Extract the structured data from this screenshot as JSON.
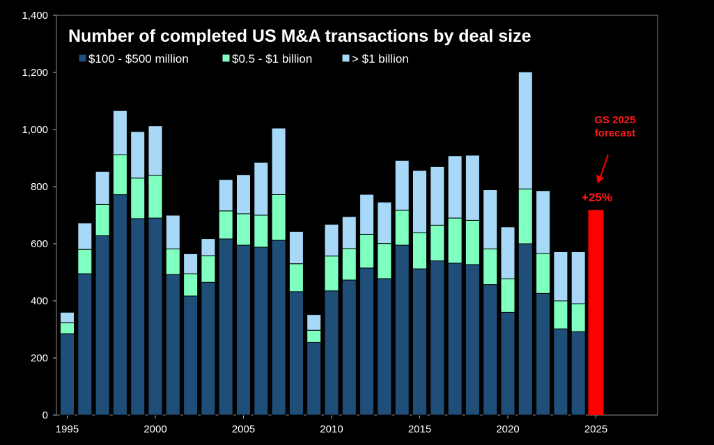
{
  "chart_data": {
    "type": "bar",
    "stacked": true,
    "title": "Number of completed US M&A transactions by deal size",
    "xlabel": "",
    "ylabel": "",
    "ylim": [
      0,
      1400
    ],
    "yticks": [
      0,
      200,
      400,
      600,
      800,
      1000,
      1200,
      1400
    ],
    "ytick_labels": [
      "0",
      "200",
      "400",
      "600",
      "800",
      "1,000",
      "1,200",
      "1,400"
    ],
    "xtick_labels": [
      "1995",
      "2000",
      "2005",
      "2010",
      "2015",
      "2020",
      "2025"
    ],
    "xtick_years": [
      1995,
      2000,
      2005,
      2010,
      2015,
      2020,
      2025
    ],
    "legend_position": "top-left",
    "categories": [
      1995,
      1996,
      1997,
      1998,
      1999,
      2000,
      2001,
      2002,
      2003,
      2004,
      2005,
      2006,
      2007,
      2008,
      2009,
      2010,
      2011,
      2012,
      2013,
      2014,
      2015,
      2016,
      2017,
      2018,
      2019,
      2020,
      2021,
      2022,
      2023,
      2024
    ],
    "series": [
      {
        "name": "$100 - $500 million",
        "color": "#1f4e79",
        "values": [
          285,
          495,
          628,
          772,
          688,
          690,
          492,
          417,
          465,
          617,
          595,
          588,
          612,
          432,
          255,
          435,
          473,
          515,
          478,
          595,
          512,
          540,
          532,
          527,
          457,
          360,
          600,
          426,
          302,
          292
        ]
      },
      {
        "name": "$0.5 - $1 billion",
        "color": "#7fffc0",
        "values": [
          38,
          85,
          110,
          140,
          142,
          150,
          90,
          78,
          93,
          98,
          110,
          112,
          160,
          98,
          42,
          122,
          110,
          118,
          123,
          122,
          127,
          125,
          158,
          155,
          125,
          117,
          192,
          140,
          98,
          98
        ]
      },
      {
        "name": "> $1 billion",
        "color": "#a7d8f8",
        "values": [
          37,
          93,
          115,
          155,
          163,
          173,
          118,
          70,
          60,
          110,
          137,
          185,
          233,
          113,
          55,
          111,
          112,
          140,
          145,
          175,
          218,
          205,
          218,
          228,
          207,
          182,
          410,
          220,
          172,
          182
        ]
      }
    ],
    "forecast": {
      "year": 2025,
      "value": 718,
      "color": "#ff0000",
      "label": "+25%"
    },
    "annotation": {
      "lines": [
        "GS 2025",
        "forecast"
      ]
    }
  }
}
